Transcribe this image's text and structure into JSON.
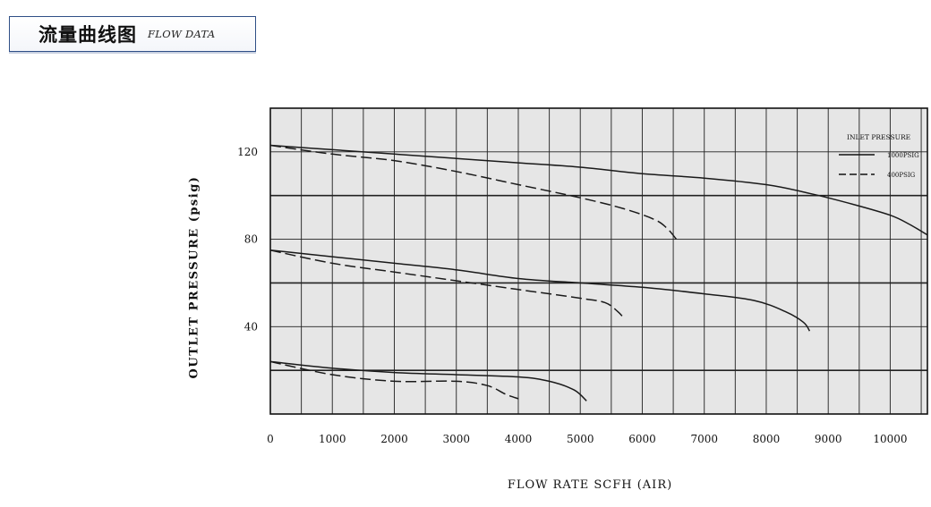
{
  "header": {
    "title_cn": "流量曲线图",
    "title_en": "FLOW DATA"
  },
  "chart_data": {
    "type": "line",
    "title": "",
    "xlabel": "FLOW RATE SCFH (AIR)",
    "ylabel": "OUTLET PRESSURE (psig)",
    "xlim": [
      0,
      10600
    ],
    "ylim": [
      0,
      140
    ],
    "x_ticks": [
      "0",
      "1000",
      "2000",
      "3000",
      "4000",
      "5000",
      "6000",
      "7000",
      "8000",
      "9000",
      "10000"
    ],
    "y_ticks": [
      "40",
      "80",
      "120"
    ],
    "grid": true,
    "legend": {
      "title": "INLET PRESSURE",
      "position": "top-right",
      "entries": [
        {
          "label": "1000PSIG",
          "style": "solid"
        },
        {
          "label": "400PSIG",
          "style": "dashed"
        }
      ]
    },
    "plot_background": "#e6e6e6",
    "line_color": "#1a1a1a",
    "series": [
      {
        "style": "solid",
        "points": [
          [
            0,
            123
          ],
          [
            1000,
            121
          ],
          [
            2000,
            119
          ],
          [
            3000,
            117
          ],
          [
            4000,
            115
          ],
          [
            5000,
            113
          ],
          [
            6000,
            110
          ],
          [
            7000,
            108
          ],
          [
            8000,
            105
          ],
          [
            8700,
            101
          ],
          [
            9400,
            96
          ],
          [
            10000,
            91
          ],
          [
            10300,
            87
          ],
          [
            10600,
            82
          ]
        ]
      },
      {
        "style": "dashed",
        "points": [
          [
            0,
            123
          ],
          [
            1000,
            119
          ],
          [
            2000,
            116
          ],
          [
            3000,
            111
          ],
          [
            4000,
            105
          ],
          [
            5000,
            99
          ],
          [
            5700,
            94
          ],
          [
            6200,
            89
          ],
          [
            6400,
            85
          ],
          [
            6550,
            80
          ]
        ]
      },
      {
        "style": "solid",
        "points": [
          [
            0,
            75
          ],
          [
            1000,
            72
          ],
          [
            2000,
            69
          ],
          [
            3000,
            66
          ],
          [
            4000,
            62
          ],
          [
            5000,
            60
          ],
          [
            6000,
            58
          ],
          [
            7000,
            55
          ],
          [
            7800,
            52
          ],
          [
            8300,
            47
          ],
          [
            8600,
            42
          ],
          [
            8700,
            38
          ]
        ]
      },
      {
        "style": "dashed",
        "points": [
          [
            0,
            75
          ],
          [
            1000,
            69
          ],
          [
            2000,
            65
          ],
          [
            3000,
            61
          ],
          [
            4000,
            57
          ],
          [
            5000,
            53
          ],
          [
            5400,
            51
          ],
          [
            5600,
            47
          ],
          [
            5700,
            44
          ]
        ]
      },
      {
        "style": "solid",
        "points": [
          [
            0,
            24
          ],
          [
            1000,
            21
          ],
          [
            2000,
            19
          ],
          [
            3000,
            18
          ],
          [
            4000,
            17
          ],
          [
            4500,
            15
          ],
          [
            4900,
            11
          ],
          [
            5100,
            6
          ]
        ]
      },
      {
        "style": "dashed",
        "points": [
          [
            0,
            24
          ],
          [
            1000,
            18
          ],
          [
            2000,
            15
          ],
          [
            3000,
            15
          ],
          [
            3500,
            13
          ],
          [
            3800,
            9
          ],
          [
            4000,
            7
          ]
        ]
      }
    ]
  }
}
